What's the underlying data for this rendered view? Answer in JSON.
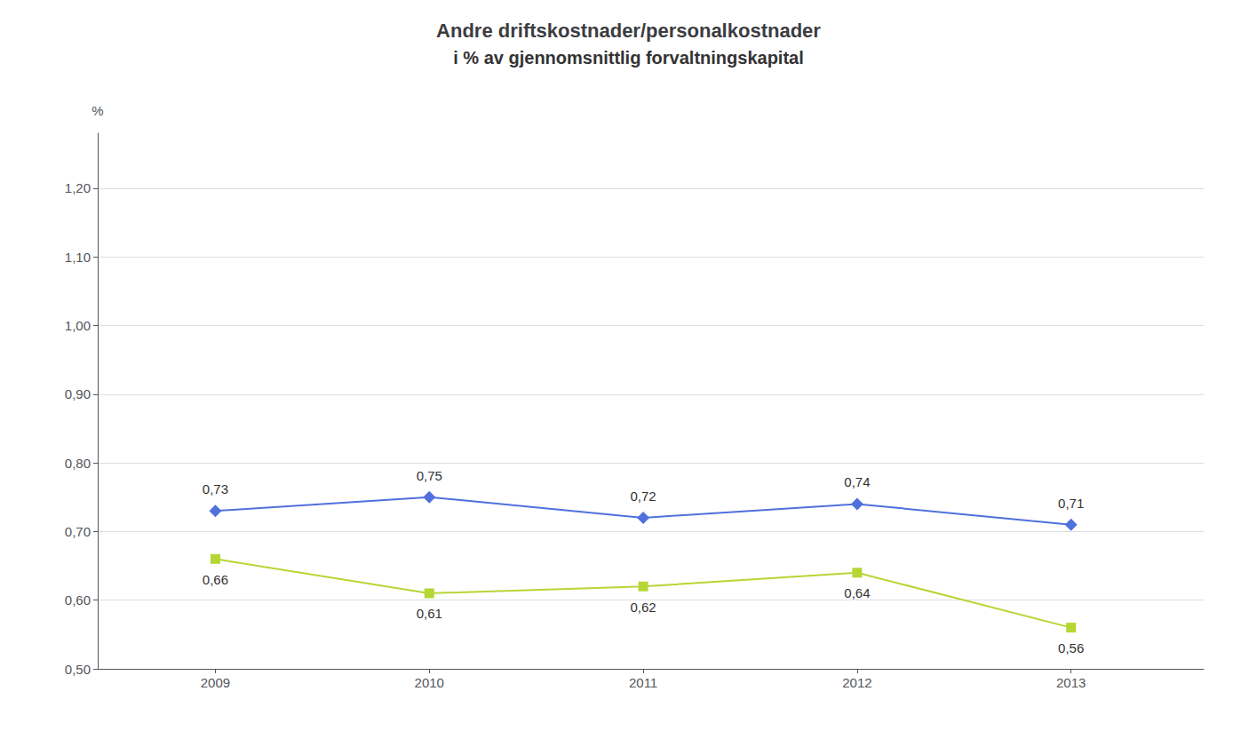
{
  "chart_data": {
    "type": "line",
    "title": "Andre driftskostnader/personalkostnader",
    "subtitle": "i % av gjennomsnittlig forvaltningskapital",
    "ylabel": "%",
    "x": [
      2009,
      2010,
      2011,
      2012,
      2013
    ],
    "series": [
      {
        "values": [
          0.73,
          0.75,
          0.72,
          0.74,
          0.71
        ],
        "value_labels": [
          "0,73",
          "0,75",
          "0,72",
          "0,74",
          "0,71"
        ],
        "marker": "diamond"
      },
      {
        "values": [
          0.66,
          0.61,
          0.62,
          0.64,
          0.56
        ],
        "value_labels": [
          "0,66",
          "0,61",
          "0,62",
          "0,64",
          "0,56"
        ],
        "marker": "square"
      }
    ],
    "xlim": [
      2008.45,
      2013.62
    ],
    "xticks": [
      2009,
      2010,
      2011,
      2012,
      2013
    ],
    "ylim": [
      0.5,
      1.28
    ],
    "yticks": [
      {
        "value": 0.5,
        "label": "0,50"
      },
      {
        "value": 0.6,
        "label": "0,60"
      },
      {
        "value": 0.7,
        "label": "0,70"
      },
      {
        "value": 0.8,
        "label": "0,80"
      },
      {
        "value": 0.9,
        "label": "0,90"
      },
      {
        "value": 1.0,
        "label": "1,00"
      },
      {
        "value": 1.1,
        "label": "1,10"
      },
      {
        "value": 1.2,
        "label": "1,20"
      }
    ],
    "grid": true,
    "data_labels": true
  }
}
